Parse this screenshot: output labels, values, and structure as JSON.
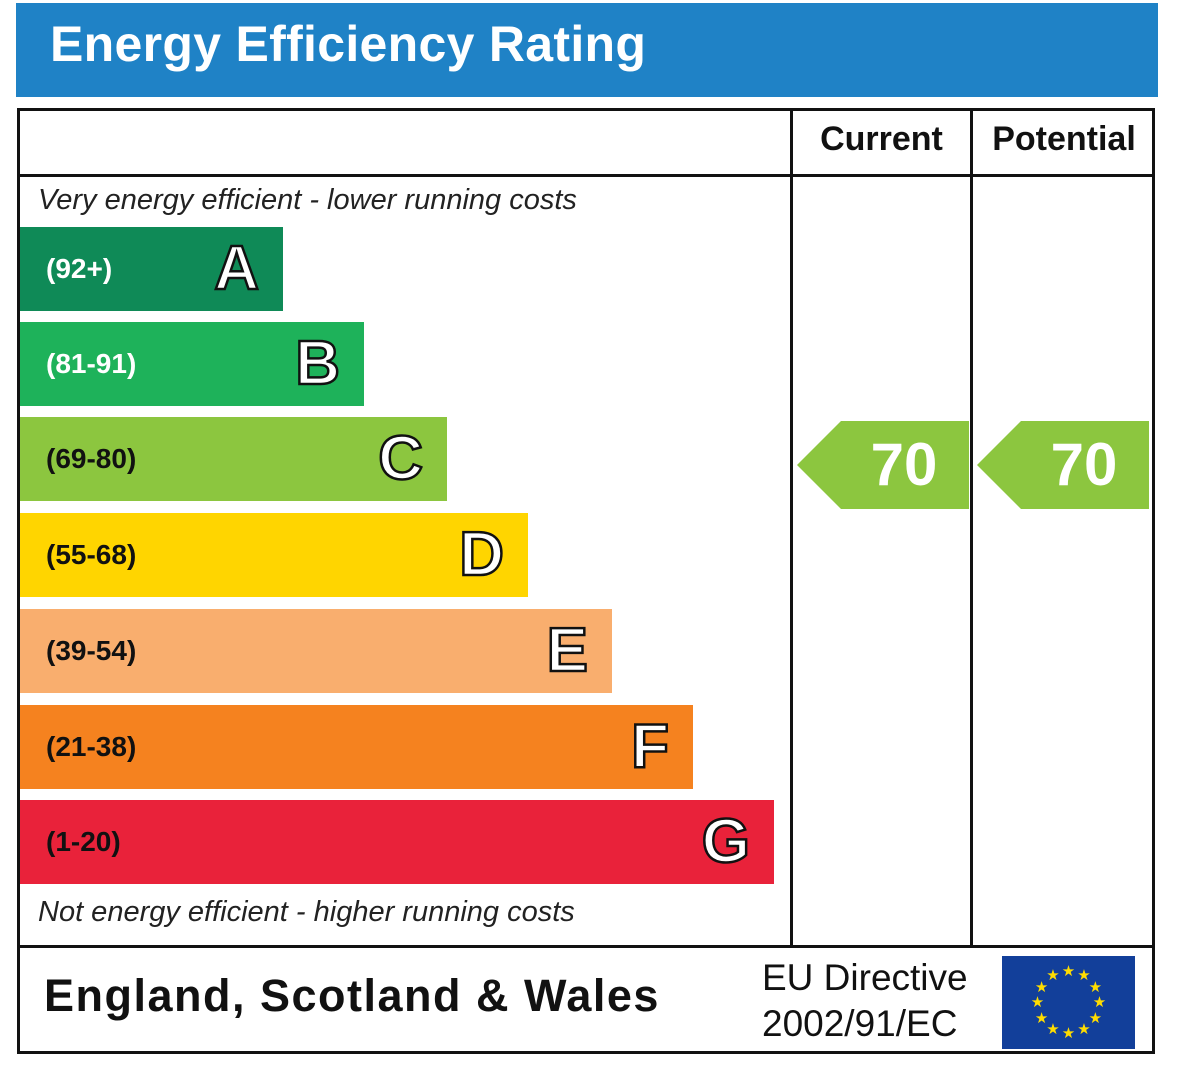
{
  "title": "Energy Efficiency Rating",
  "columns": {
    "current": "Current",
    "potential": "Potential"
  },
  "top_note": "Very energy efficient - lower running costs",
  "bottom_note": "Not energy efficient - higher running costs",
  "region": "England, Scotland & Wales",
  "directive": {
    "line1": "EU Directive",
    "line2": "2002/91/EC"
  },
  "flag_icon": "eu-flag-icon",
  "chart_data": {
    "type": "bar",
    "title": "Energy Efficiency Rating",
    "categories": [
      "A",
      "B",
      "C",
      "D",
      "E",
      "F",
      "G"
    ],
    "bands": [
      {
        "letter": "A",
        "range": "(92+)",
        "min": 92,
        "max": 100,
        "color": "#0f8a57",
        "range_color": "#ffffff"
      },
      {
        "letter": "B",
        "range": "(81-91)",
        "min": 81,
        "max": 91,
        "color": "#1eb25a",
        "range_color": "#ffffff"
      },
      {
        "letter": "C",
        "range": "(69-80)",
        "min": 69,
        "max": 80,
        "color": "#8cc63f",
        "range_color": "#111111"
      },
      {
        "letter": "D",
        "range": "(55-68)",
        "min": 55,
        "max": 68,
        "color": "#ffd500",
        "range_color": "#111111"
      },
      {
        "letter": "E",
        "range": "(39-54)",
        "min": 39,
        "max": 54,
        "color": "#f9ae6e",
        "range_color": "#111111"
      },
      {
        "letter": "F",
        "range": "(21-38)",
        "min": 21,
        "max": 38,
        "color": "#f5821f",
        "range_color": "#111111"
      },
      {
        "letter": "G",
        "range": "(1-20)",
        "min": 1,
        "max": 20,
        "color": "#e9223a",
        "range_color": "#111111"
      }
    ],
    "series": [
      {
        "name": "Current",
        "value": 70,
        "band": "C",
        "color": "#8cc63f"
      },
      {
        "name": "Potential",
        "value": 70,
        "band": "C",
        "color": "#8cc63f"
      }
    ],
    "current": 70,
    "potential": 70
  }
}
